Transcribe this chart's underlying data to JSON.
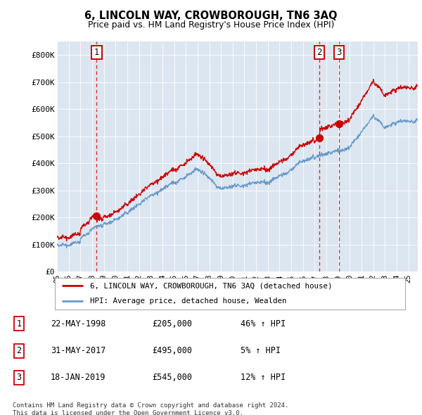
{
  "title": "6, LINCOLN WAY, CROWBOROUGH, TN6 3AQ",
  "subtitle": "Price paid vs. HM Land Registry's House Price Index (HPI)",
  "sale_dates": [
    "1998-05-22",
    "2017-05-31",
    "2019-01-18"
  ],
  "sale_prices": [
    205000,
    495000,
    545000
  ],
  "sale_labels": [
    "1",
    "2",
    "3"
  ],
  "legend_red": "6, LINCOLN WAY, CROWBOROUGH, TN6 3AQ (detached house)",
  "legend_blue": "HPI: Average price, detached house, Wealden",
  "table_rows": [
    [
      "1",
      "22-MAY-1998",
      "£205,000",
      "46% ↑ HPI"
    ],
    [
      "2",
      "31-MAY-2017",
      "£495,000",
      "5% ↑ HPI"
    ],
    [
      "3",
      "18-JAN-2019",
      "£545,000",
      "12% ↑ HPI"
    ]
  ],
  "footer": "Contains HM Land Registry data © Crown copyright and database right 2024.\nThis data is licensed under the Open Government Licence v3.0.",
  "bg_color": "#dce6f1",
  "red_color": "#cc0000",
  "blue_color": "#6699cc",
  "ylim": [
    0,
    850000
  ],
  "yticks": [
    0,
    100000,
    200000,
    300000,
    400000,
    500000,
    600000,
    700000,
    800000
  ],
  "ytick_labels": [
    "£0",
    "£100K",
    "£200K",
    "£300K",
    "£400K",
    "£500K",
    "£600K",
    "£700K",
    "£800K"
  ],
  "xlim_start": 1995.0,
  "xlim_end": 2025.8
}
